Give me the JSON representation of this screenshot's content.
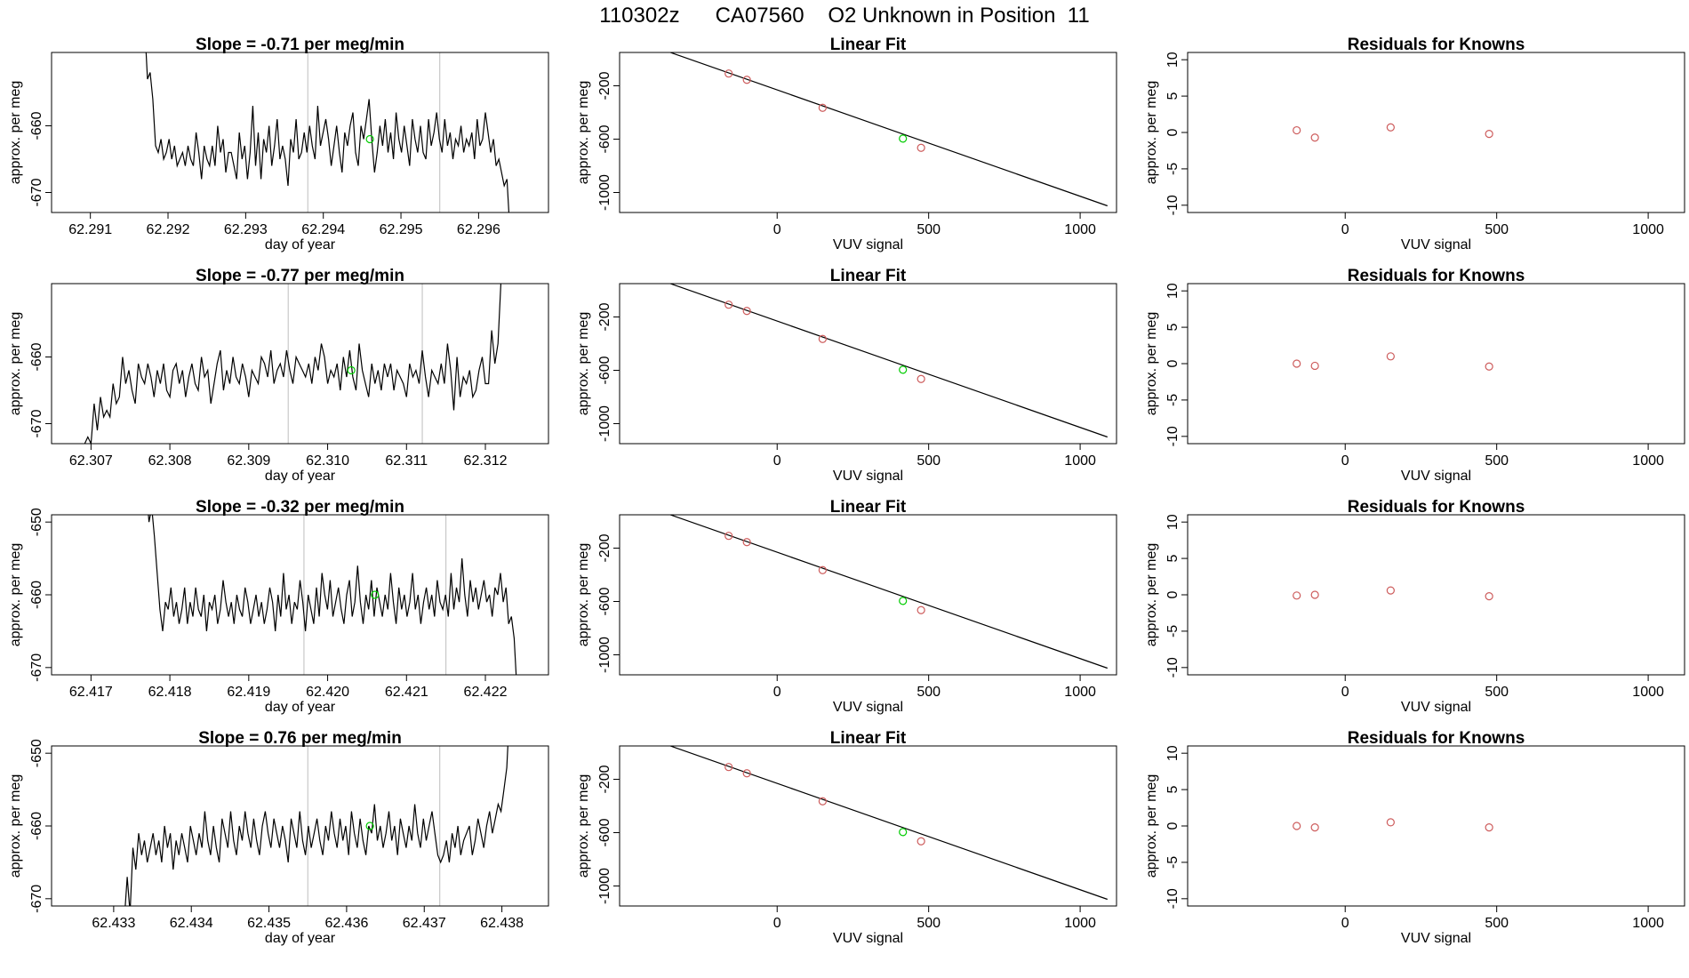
{
  "page_title": "110302z      CA07560    O2 Unknown in Position  11",
  "chart_data": [
    {
      "type": "line",
      "panel": "timeseries",
      "row": 0,
      "title": "Slope =  -0.71  per meg/min",
      "xlabel": "day of year",
      "ylabel": "approx. per meg",
      "xlim": [
        62.2905,
        62.2969
      ],
      "ylim": [
        -673,
        -649
      ],
      "xticks": [
        62.291,
        62.292,
        62.293,
        62.294,
        62.295,
        62.296
      ],
      "xtick_labels": [
        "62.291",
        "62.292",
        "62.293",
        "62.294",
        "62.295",
        "62.296"
      ],
      "yticks": [
        -660,
        -670
      ],
      "ytick_labels": [
        "-660",
        "-670"
      ],
      "vlines": [
        62.2938,
        62.2955
      ],
      "marker": {
        "x": 62.2946,
        "y": -662,
        "color": "#00cc00"
      },
      "line_color": "#000000",
      "vline_color": "#bebebe",
      "series_x_range": [
        62.2917,
        62.2964
      ],
      "series_y": [
        -645,
        -653,
        -652,
        -656,
        -663,
        -664,
        -662,
        -665,
        -664,
        -662,
        -665,
        -663,
        -666,
        -665,
        -664,
        -666,
        -663,
        -665,
        -666,
        -661,
        -664,
        -668,
        -663,
        -665,
        -666,
        -663,
        -666,
        -660,
        -664,
        -662,
        -667,
        -664,
        -664,
        -666,
        -668,
        -661,
        -665,
        -663,
        -668,
        -664,
        -657,
        -666,
        -661,
        -668,
        -662,
        -664,
        -660,
        -666,
        -663,
        -659,
        -665,
        -663,
        -665,
        -669,
        -662,
        -664,
        -659,
        -665,
        -664,
        -661,
        -664,
        -660,
        -663,
        -665,
        -657,
        -663,
        -661,
        -659,
        -662,
        -666,
        -663,
        -660,
        -664,
        -667,
        -661,
        -663,
        -660,
        -658,
        -664,
        -666,
        -660,
        -662,
        -659,
        -656,
        -662,
        -667,
        -664,
        -660,
        -663,
        -659,
        -664,
        -661,
        -665,
        -658,
        -662,
        -664,
        -660,
        -663,
        -666,
        -659,
        -662,
        -664,
        -660,
        -664,
        -665,
        -659,
        -663,
        -661,
        -658,
        -662,
        -664,
        -659,
        -663,
        -661,
        -665,
        -662,
        -663,
        -660,
        -664,
        -662,
        -663,
        -661,
        -665,
        -659,
        -663,
        -662,
        -658,
        -661,
        -664,
        -662,
        -666,
        -665,
        -667,
        -669,
        -668,
        -675
      ]
    },
    {
      "type": "scatter",
      "panel": "linear-fit",
      "row": 0,
      "title": "Linear Fit",
      "xlabel": "VUV signal",
      "ylabel": "approx. per meg",
      "xlim": [
        -520,
        1120
      ],
      "ylim": [
        -1150,
        50
      ],
      "xticks": [
        0,
        500,
        1000
      ],
      "xtick_labels": [
        "0",
        "500",
        "1000"
      ],
      "yticks": [
        -200,
        -600,
        -1000
      ],
      "ytick_labels": [
        "-200",
        "-600",
        "-1000"
      ],
      "fit_line": {
        "x": [
          -440,
          1090
        ],
        "y": [
          120,
          -1100
        ]
      },
      "knowns": {
        "x": [
          -160,
          -100,
          150,
          475
        ],
        "y": [
          -108,
          -155,
          -365,
          -665
        ]
      },
      "unknown": {
        "x": [
          415
        ],
        "y": [
          -596
        ]
      },
      "known_color": "#cd5c5c",
      "unknown_color": "#00cc00"
    },
    {
      "type": "scatter",
      "panel": "residuals",
      "row": 0,
      "title": "Residuals for Knowns",
      "xlabel": "VUV signal",
      "ylabel": "approx. per meg",
      "xlim": [
        -520,
        1120
      ],
      "ylim": [
        -11,
        11
      ],
      "xticks": [
        0,
        500,
        1000
      ],
      "xtick_labels": [
        "0",
        "500",
        "1000"
      ],
      "yticks": [
        -10,
        -5,
        0,
        5,
        10
      ],
      "ytick_labels": [
        "-10",
        "-5",
        "0",
        "5",
        "10"
      ],
      "points": {
        "x": [
          -160,
          -100,
          150,
          475
        ],
        "y": [
          0.3,
          -0.7,
          0.7,
          -0.2
        ]
      },
      "point_color": "#cd5c5c"
    },
    {
      "type": "line",
      "panel": "timeseries",
      "row": 1,
      "title": "Slope =  -0.77  per meg/min",
      "xlabel": "day of year",
      "ylabel": "approx. per meg",
      "xlim": [
        62.3065,
        62.3128
      ],
      "ylim": [
        -673,
        -649
      ],
      "xticks": [
        62.307,
        62.308,
        62.309,
        62.31,
        62.311,
        62.312
      ],
      "xtick_labels": [
        "62.307",
        "62.308",
        "62.309",
        "62.310",
        "62.311",
        "62.312"
      ],
      "yticks": [
        -660,
        -670
      ],
      "ytick_labels": [
        "-660",
        "-670"
      ],
      "vlines": [
        62.3095,
        62.3112
      ],
      "marker": {
        "x": 62.3103,
        "y": -662,
        "color": "#00cc00"
      },
      "line_color": "#000000",
      "vline_color": "#bebebe",
      "series_x_range": [
        62.3068,
        62.3122
      ],
      "series_y": [
        -675,
        -675,
        -674,
        -673,
        -672,
        -673,
        -667,
        -671,
        -666,
        -669,
        -668,
        -669,
        -664,
        -667,
        -666,
        -660,
        -664,
        -662,
        -665,
        -667,
        -661,
        -663,
        -664,
        -661,
        -663,
        -666,
        -662,
        -664,
        -661,
        -665,
        -666,
        -662,
        -661,
        -664,
        -662,
        -666,
        -663,
        -661,
        -664,
        -665,
        -660,
        -663,
        -662,
        -667,
        -664,
        -661,
        -659,
        -665,
        -662,
        -664,
        -660,
        -663,
        -664,
        -661,
        -663,
        -666,
        -662,
        -663,
        -664,
        -660,
        -661,
        -663,
        -659,
        -664,
        -662,
        -661,
        -663,
        -659,
        -662,
        -664,
        -660,
        -661,
        -662,
        -663,
        -661,
        -664,
        -660,
        -662,
        -658,
        -660,
        -664,
        -662,
        -663,
        -661,
        -665,
        -660,
        -663,
        -659,
        -663,
        -665,
        -658,
        -662,
        -664,
        -666,
        -661,
        -664,
        -662,
        -665,
        -661,
        -663,
        -661,
        -665,
        -662,
        -663,
        -664,
        -666,
        -661,
        -663,
        -662,
        -664,
        -659,
        -663,
        -666,
        -662,
        -663,
        -664,
        -661,
        -664,
        -658,
        -662,
        -668,
        -660,
        -666,
        -663,
        -664,
        -662,
        -666,
        -665,
        -662,
        -660,
        -664,
        -664,
        -656,
        -661,
        -658,
        -648
      ]
    },
    {
      "type": "scatter",
      "panel": "linear-fit",
      "row": 1,
      "title": "Linear Fit",
      "xlabel": "VUV signal",
      "ylabel": "approx. per meg",
      "xlim": [
        -520,
        1120
      ],
      "ylim": [
        -1150,
        50
      ],
      "xticks": [
        0,
        500,
        1000
      ],
      "xtick_labels": [
        "0",
        "500",
        "1000"
      ],
      "yticks": [
        -200,
        -600,
        -1000
      ],
      "ytick_labels": [
        "-200",
        "-600",
        "-1000"
      ],
      "fit_line": {
        "x": [
          -440,
          1090
        ],
        "y": [
          120,
          -1100
        ]
      },
      "knowns": {
        "x": [
          -160,
          -100,
          150,
          475
        ],
        "y": [
          -108,
          -155,
          -365,
          -665
        ]
      },
      "unknown": {
        "x": [
          415
        ],
        "y": [
          -596
        ]
      },
      "known_color": "#cd5c5c",
      "unknown_color": "#00cc00"
    },
    {
      "type": "scatter",
      "panel": "residuals",
      "row": 1,
      "title": "Residuals for Knowns",
      "xlabel": "VUV signal",
      "ylabel": "approx. per meg",
      "xlim": [
        -520,
        1120
      ],
      "ylim": [
        -11,
        11
      ],
      "xticks": [
        0,
        500,
        1000
      ],
      "xtick_labels": [
        "0",
        "500",
        "1000"
      ],
      "yticks": [
        -10,
        -5,
        0,
        5,
        10
      ],
      "ytick_labels": [
        "-10",
        "-5",
        "0",
        "5",
        "10"
      ],
      "points": {
        "x": [
          -160,
          -100,
          150,
          475
        ],
        "y": [
          0.0,
          -0.3,
          1.0,
          -0.4
        ]
      },
      "point_color": "#cd5c5c"
    },
    {
      "type": "line",
      "panel": "timeseries",
      "row": 2,
      "title": "Slope =  -0.32  per meg/min",
      "xlabel": "day of year",
      "ylabel": "approx. per meg",
      "xlim": [
        62.4165,
        62.4228
      ],
      "ylim": [
        -671,
        -649
      ],
      "xticks": [
        62.417,
        62.418,
        62.419,
        62.42,
        62.421,
        62.422
      ],
      "xtick_labels": [
        "62.417",
        "62.418",
        "62.419",
        "62.420",
        "62.421",
        "62.422"
      ],
      "yticks": [
        -650,
        -660,
        -670
      ],
      "ytick_labels": [
        "-650",
        "-660",
        "-670"
      ],
      "vlines": [
        62.4197,
        62.4215
      ],
      "marker": {
        "x": 62.4206,
        "y": -660,
        "color": "#00cc00"
      },
      "line_color": "#000000",
      "vline_color": "#bebebe",
      "series_x_range": [
        62.4177,
        62.4224
      ],
      "series_y": [
        -645,
        -650,
        -648,
        -652,
        -657,
        -662,
        -665,
        -661,
        -662,
        -659,
        -663,
        -661,
        -664,
        -662,
        -659,
        -664,
        -661,
        -663,
        -659,
        -662,
        -663,
        -660,
        -665,
        -661,
        -662,
        -660,
        -664,
        -662,
        -658,
        -661,
        -663,
        -661,
        -664,
        -660,
        -662,
        -663,
        -659,
        -661,
        -664,
        -662,
        -660,
        -663,
        -661,
        -664,
        -662,
        -659,
        -661,
        -665,
        -660,
        -663,
        -657,
        -662,
        -660,
        -664,
        -661,
        -662,
        -658,
        -661,
        -665,
        -660,
        -662,
        -664,
        -659,
        -663,
        -657,
        -660,
        -662,
        -658,
        -663,
        -661,
        -659,
        -662,
        -664,
        -660,
        -658,
        -663,
        -661,
        -656,
        -661,
        -664,
        -660,
        -662,
        -658,
        -663,
        -659,
        -661,
        -663,
        -660,
        -662,
        -657,
        -661,
        -664,
        -659,
        -662,
        -660,
        -663,
        -661,
        -657,
        -662,
        -660,
        -664,
        -661,
        -659,
        -662,
        -660,
        -663,
        -658,
        -661,
        -662,
        -660,
        -663,
        -657,
        -662,
        -659,
        -661,
        -655,
        -660,
        -663,
        -658,
        -661,
        -659,
        -662,
        -660,
        -658,
        -661,
        -660,
        -663,
        -659,
        -660,
        -657,
        -661,
        -659,
        -664,
        -663,
        -666,
        -673
      ]
    },
    {
      "type": "scatter",
      "panel": "linear-fit",
      "row": 2,
      "title": "Linear Fit",
      "xlabel": "VUV signal",
      "ylabel": "approx. per meg",
      "xlim": [
        -520,
        1120
      ],
      "ylim": [
        -1150,
        50
      ],
      "xticks": [
        0,
        500,
        1000
      ],
      "xtick_labels": [
        "0",
        "500",
        "1000"
      ],
      "yticks": [
        -200,
        -600,
        -1000
      ],
      "ytick_labels": [
        "-200",
        "-600",
        "-1000"
      ],
      "fit_line": {
        "x": [
          -440,
          1090
        ],
        "y": [
          120,
          -1100
        ]
      },
      "knowns": {
        "x": [
          -160,
          -100,
          150,
          475
        ],
        "y": [
          -108,
          -155,
          -365,
          -665
        ]
      },
      "unknown": {
        "x": [
          415
        ],
        "y": [
          -596
        ]
      },
      "known_color": "#cd5c5c",
      "unknown_color": "#00cc00"
    },
    {
      "type": "scatter",
      "panel": "residuals",
      "row": 2,
      "title": "Residuals for Knowns",
      "xlabel": "VUV signal",
      "ylabel": "approx. per meg",
      "xlim": [
        -520,
        1120
      ],
      "ylim": [
        -11,
        11
      ],
      "xticks": [
        0,
        500,
        1000
      ],
      "xtick_labels": [
        "0",
        "500",
        "1000"
      ],
      "yticks": [
        -10,
        -5,
        0,
        5,
        10
      ],
      "ytick_labels": [
        "-10",
        "-5",
        "0",
        "5",
        "10"
      ],
      "points": {
        "x": [
          -160,
          -100,
          150,
          475
        ],
        "y": [
          -0.1,
          0.0,
          0.6,
          -0.2
        ]
      },
      "point_color": "#cd5c5c"
    },
    {
      "type": "line",
      "panel": "timeseries",
      "row": 3,
      "title": "Slope =  0.76  per meg/min",
      "xlabel": "day of year",
      "ylabel": "approx. per meg",
      "xlim": [
        62.4322,
        62.4386
      ],
      "ylim": [
        -671,
        -649
      ],
      "xticks": [
        62.433,
        62.434,
        62.435,
        62.436,
        62.437,
        62.438
      ],
      "xtick_labels": [
        "62.433",
        "62.434",
        "62.435",
        "62.436",
        "62.437",
        "62.438"
      ],
      "yticks": [
        -650,
        -660,
        -670
      ],
      "ytick_labels": [
        "-650",
        "-660",
        "-670"
      ],
      "vlines": [
        62.4355,
        62.4372
      ],
      "marker": {
        "x": 62.4363,
        "y": -660,
        "color": "#00cc00"
      },
      "line_color": "#000000",
      "vline_color": "#bebebe",
      "series_x_range": [
        62.4331,
        62.4381
      ],
      "series_y": [
        -672,
        -673,
        -667,
        -672,
        -663,
        -666,
        -661,
        -664,
        -662,
        -665,
        -663,
        -661,
        -664,
        -662,
        -665,
        -660,
        -663,
        -661,
        -666,
        -662,
        -664,
        -661,
        -663,
        -665,
        -660,
        -662,
        -664,
        -661,
        -663,
        -658,
        -662,
        -664,
        -660,
        -663,
        -665,
        -659,
        -661,
        -663,
        -658,
        -662,
        -664,
        -660,
        -662,
        -658,
        -661,
        -663,
        -659,
        -662,
        -664,
        -660,
        -658,
        -661,
        -663,
        -659,
        -661,
        -663,
        -660,
        -662,
        -665,
        -659,
        -661,
        -663,
        -658,
        -662,
        -664,
        -660,
        -663,
        -661,
        -659,
        -662,
        -664,
        -660,
        -662,
        -658,
        -661,
        -663,
        -659,
        -662,
        -660,
        -664,
        -658,
        -661,
        -663,
        -659,
        -662,
        -664,
        -660,
        -661,
        -657,
        -662,
        -660,
        -663,
        -661,
        -658,
        -662,
        -660,
        -664,
        -659,
        -661,
        -663,
        -660,
        -662,
        -657,
        -661,
        -663,
        -659,
        -662,
        -660,
        -658,
        -661,
        -664,
        -665,
        -664,
        -662,
        -665,
        -661,
        -663,
        -660,
        -664,
        -662,
        -661,
        -660,
        -664,
        -662,
        -659,
        -661,
        -663,
        -660,
        -658,
        -661,
        -659,
        -657,
        -658,
        -655,
        -652,
        -644
      ]
    },
    {
      "type": "scatter",
      "panel": "linear-fit",
      "row": 3,
      "title": "Linear Fit",
      "xlabel": "VUV signal",
      "ylabel": "approx. per meg",
      "xlim": [
        -520,
        1120
      ],
      "ylim": [
        -1150,
        50
      ],
      "xticks": [
        0,
        500,
        1000
      ],
      "xtick_labels": [
        "0",
        "500",
        "1000"
      ],
      "yticks": [
        -200,
        -600,
        -1000
      ],
      "ytick_labels": [
        "-200",
        "-600",
        "-1000"
      ],
      "fit_line": {
        "x": [
          -440,
          1090
        ],
        "y": [
          120,
          -1100
        ]
      },
      "knowns": {
        "x": [
          -160,
          -100,
          150,
          475
        ],
        "y": [
          -108,
          -155,
          -365,
          -665
        ]
      },
      "unknown": {
        "x": [
          415
        ],
        "y": [
          -596
        ]
      },
      "known_color": "#cd5c5c",
      "unknown_color": "#00cc00"
    },
    {
      "type": "scatter",
      "panel": "residuals",
      "row": 3,
      "title": "Residuals for Knowns",
      "xlabel": "VUV signal",
      "ylabel": "approx. per meg",
      "xlim": [
        -520,
        1120
      ],
      "ylim": [
        -11,
        11
      ],
      "xticks": [
        0,
        500,
        1000
      ],
      "xtick_labels": [
        "0",
        "500",
        "1000"
      ],
      "yticks": [
        -10,
        -5,
        0,
        5,
        10
      ],
      "ytick_labels": [
        "-10",
        "-5",
        "0",
        "5",
        "10"
      ],
      "points": {
        "x": [
          -160,
          -100,
          150,
          475
        ],
        "y": [
          0.0,
          -0.2,
          0.5,
          -0.2
        ]
      },
      "point_color": "#cd5c5c"
    }
  ]
}
